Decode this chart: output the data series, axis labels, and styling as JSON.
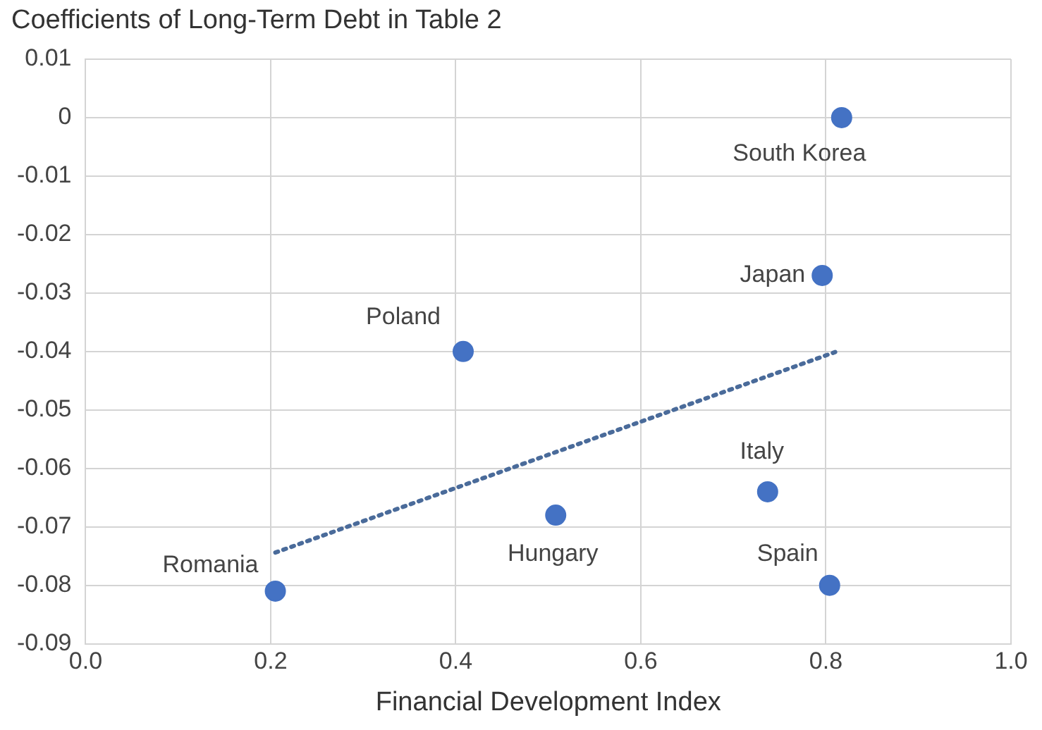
{
  "chart_data": {
    "type": "scatter",
    "title": "Coefficients of Long-Term Debt in Table 2",
    "xlabel": "Financial Development Index",
    "series": [
      {
        "color": "#4472c4",
        "marker": "circle",
        "x": [
          0.817,
          0.796,
          0.408,
          0.737,
          0.508,
          0.205,
          0.804
        ],
        "values": [
          0.0,
          -0.027,
          -0.04,
          -0.064,
          -0.068,
          -0.081,
          -0.08
        ]
      },
      {
        "type": "line",
        "color": "#4a6b9a",
        "line_style": "dotted",
        "marker": "none",
        "x": [
          0.205,
          0.81
        ],
        "values": [
          -0.0744,
          -0.0401
        ]
      }
    ],
    "annotations": [
      {
        "text": "South Korea",
        "x": 0.817,
        "y": 0.0
      },
      {
        "text": "Japan",
        "x": 0.796,
        "y": -0.027
      },
      {
        "text": "Poland",
        "x": 0.408,
        "y": -0.04
      },
      {
        "text": "Italy",
        "x": 0.737,
        "y": -0.064
      },
      {
        "text": "Hungary",
        "x": 0.508,
        "y": -0.068
      },
      {
        "text": "Romania",
        "x": 0.205,
        "y": -0.081
      },
      {
        "text": "Spain",
        "x": 0.804,
        "y": -0.08
      }
    ],
    "xlim": [
      0,
      1
    ],
    "ylim": [
      -0.09,
      0.01
    ],
    "xticks": [
      {
        "value": 0,
        "label": "0.0"
      },
      {
        "value": 0.2,
        "label": "0.2"
      },
      {
        "value": 0.4,
        "label": "0.4"
      },
      {
        "value": 0.6,
        "label": "0.6"
      },
      {
        "value": 0.8,
        "label": "0.8"
      },
      {
        "value": 1,
        "label": "1.0"
      }
    ],
    "yticks": [
      0.01,
      0,
      -0.01,
      -0.02,
      -0.03,
      -0.04,
      -0.05,
      -0.06,
      -0.07,
      -0.08,
      -0.09
    ],
    "grid": true,
    "legend": false
  }
}
